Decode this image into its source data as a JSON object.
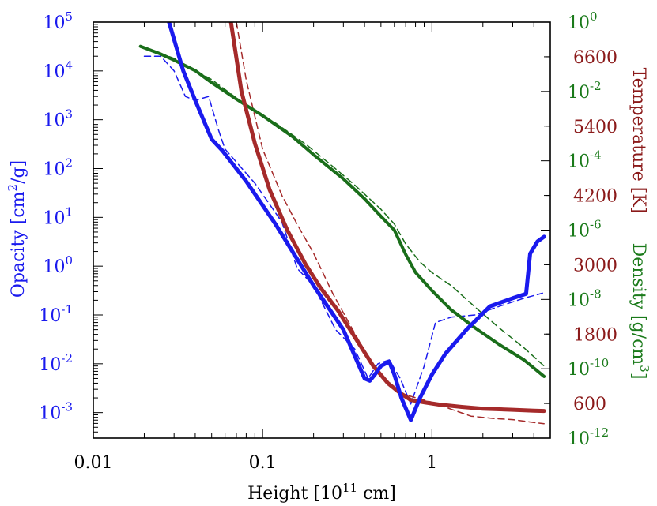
{
  "chart_data": {
    "type": "line",
    "xscale": "log",
    "xlim": [
      0.01,
      5.0
    ],
    "xlabel": {
      "base": "Height [10",
      "sup": "11",
      "tail": " cm]"
    },
    "xticks": [
      {
        "value": 0.01,
        "label": "0.01"
      },
      {
        "value": 0.1,
        "label": "0.1"
      },
      {
        "value": 1,
        "label": "1"
      }
    ],
    "axes": {
      "opacity": {
        "side": "left",
        "scale": "log",
        "ylim": [
          0.0003,
          100000
        ],
        "color": "#1a1aee",
        "label": {
          "base": "Opacity [cm",
          "sup": "2",
          "tail": "/g]"
        },
        "ticks": [
          {
            "value": 100000,
            "base": "10",
            "exp": "5"
          },
          {
            "value": 10000,
            "base": "10",
            "exp": "4"
          },
          {
            "value": 1000,
            "base": "10",
            "exp": "3"
          },
          {
            "value": 100,
            "base": "10",
            "exp": "2"
          },
          {
            "value": 10,
            "base": "10",
            "exp": "1"
          },
          {
            "value": 1,
            "base": "10",
            "exp": "0"
          },
          {
            "value": 0.1,
            "base": "10",
            "exp": "-1"
          },
          {
            "value": 0.01,
            "base": "10",
            "exp": "-2"
          },
          {
            "value": 0.001,
            "base": "10",
            "exp": "-3"
          }
        ]
      },
      "density": {
        "side": "right",
        "scale": "log",
        "ylim": [
          1e-12,
          1
        ],
        "color": "#1a7a1a",
        "label": {
          "base": "Density [g/cm",
          "sup": "3",
          "tail": "]"
        },
        "ticks": [
          {
            "value": 1,
            "base": "10",
            "exp": "0"
          },
          {
            "value": 0.01,
            "base": "10",
            "exp": "-2"
          },
          {
            "value": 0.0001,
            "base": "10",
            "exp": "-4"
          },
          {
            "value": 1e-06,
            "base": "10",
            "exp": "-6"
          },
          {
            "value": 1e-08,
            "base": "10",
            "exp": "-8"
          },
          {
            "value": 1e-10,
            "base": "10",
            "exp": "-10"
          },
          {
            "value": 1e-12,
            "base": "10",
            "exp": "-12"
          }
        ]
      },
      "temperature": {
        "side": "right",
        "scale": "linear",
        "ylim": [
          0,
          7200
        ],
        "color": "#8b1a1a",
        "label": "Temperature [K]",
        "ticks": [
          {
            "value": 6600,
            "label": "6600"
          },
          {
            "value": 5400,
            "label": "5400"
          },
          {
            "value": 4200,
            "label": "4200"
          },
          {
            "value": 3000,
            "label": "3000"
          },
          {
            "value": 1800,
            "label": "1800"
          },
          {
            "value": 600,
            "label": "600"
          }
        ]
      }
    },
    "series": [
      {
        "axis": "opacity",
        "style": "solid",
        "color": "#1a1aee",
        "x": [
          0.028,
          0.034,
          0.04,
          0.05,
          0.058,
          0.08,
          0.12,
          0.2,
          0.3,
          0.4,
          0.43,
          0.46,
          0.5,
          0.56,
          0.6,
          0.66,
          0.75,
          0.85,
          1.0,
          1.2,
          1.6,
          2.2,
          3.0,
          3.6,
          3.8,
          4.2,
          4.6
        ],
        "y": [
          100000,
          10000,
          2500,
          400,
          230,
          55,
          7,
          0.4,
          0.05,
          0.005,
          0.0045,
          0.006,
          0.009,
          0.011,
          0.006,
          0.002,
          0.0007,
          0.002,
          0.006,
          0.016,
          0.05,
          0.15,
          0.22,
          0.27,
          1.8,
          3.2,
          4.0
        ]
      },
      {
        "axis": "opacity",
        "style": "dashed",
        "color": "#1a1aee",
        "x": [
          0.02,
          0.025,
          0.03,
          0.035,
          0.04,
          0.048,
          0.055,
          0.06,
          0.09,
          0.13,
          0.16,
          0.2,
          0.27,
          0.35,
          0.42,
          0.48,
          0.56,
          0.65,
          0.75,
          0.9,
          1.05,
          1.3,
          1.8,
          2.5,
          3.5,
          4.5
        ],
        "y": [
          20000,
          20000,
          10000,
          3000,
          2500,
          3000,
          600,
          250,
          50,
          8,
          0.9,
          0.4,
          0.05,
          0.02,
          0.005,
          0.01,
          0.012,
          0.005,
          0.0015,
          0.009,
          0.07,
          0.09,
          0.1,
          0.15,
          0.22,
          0.28
        ]
      },
      {
        "axis": "temperature",
        "style": "solid",
        "color": "#a52a2a",
        "x": [
          0.065,
          0.075,
          0.09,
          0.11,
          0.14,
          0.18,
          0.22,
          0.28,
          0.35,
          0.45,
          0.55,
          0.65,
          0.75,
          0.9,
          1.1,
          1.5,
          2.0,
          3.0,
          4.0,
          4.6
        ],
        "y": [
          7200,
          6000,
          5100,
          4300,
          3600,
          3000,
          2600,
          2200,
          1750,
          1250,
          950,
          780,
          660,
          620,
          580,
          540,
          510,
          490,
          475,
          470
        ]
      },
      {
        "axis": "temperature",
        "style": "dashed",
        "color": "#a52a2a",
        "x": [
          0.07,
          0.08,
          0.1,
          0.13,
          0.16,
          0.2,
          0.26,
          0.33,
          0.42,
          0.5,
          0.6,
          0.7,
          0.8,
          1.0,
          1.3,
          1.7,
          2.3,
          3.0,
          4.0,
          4.6
        ],
        "y": [
          7200,
          6200,
          5000,
          4200,
          3700,
          3200,
          2500,
          1950,
          1400,
          1080,
          850,
          750,
          700,
          620,
          500,
          380,
          340,
          320,
          270,
          250
        ]
      },
      {
        "axis": "density",
        "style": "solid",
        "color": "#1a6e1a",
        "x": [
          0.019,
          0.025,
          0.03,
          0.04,
          0.05,
          0.07,
          0.1,
          0.15,
          0.2,
          0.3,
          0.4,
          0.5,
          0.6,
          0.7,
          0.8,
          1.0,
          1.3,
          1.8,
          2.5,
          3.5,
          4.6
        ],
        "y": [
          0.2,
          0.12,
          0.08,
          0.04,
          0.018,
          0.006,
          0.002,
          0.0005,
          0.00015,
          3e-05,
          8e-06,
          2.5e-06,
          1e-06,
          2e-07,
          6e-08,
          1.8e-08,
          5e-09,
          1.5e-09,
          5e-10,
          1.8e-10,
          6e-11
        ]
      },
      {
        "axis": "density",
        "style": "dashed",
        "color": "#1a6e1a",
        "x": [
          0.019,
          0.03,
          0.05,
          0.08,
          0.12,
          0.18,
          0.25,
          0.35,
          0.5,
          0.6,
          0.7,
          0.85,
          1.0,
          1.3,
          1.8,
          2.5,
          3.5,
          4.6
        ],
        "y": [
          0.2,
          0.09,
          0.022,
          0.004,
          0.0012,
          0.0003,
          8e-05,
          2e-05,
          4e-06,
          1.5e-06,
          4e-07,
          1.2e-07,
          6e-08,
          2.5e-08,
          6e-09,
          1.5e-09,
          4e-10,
          1.2e-10
        ]
      }
    ]
  }
}
